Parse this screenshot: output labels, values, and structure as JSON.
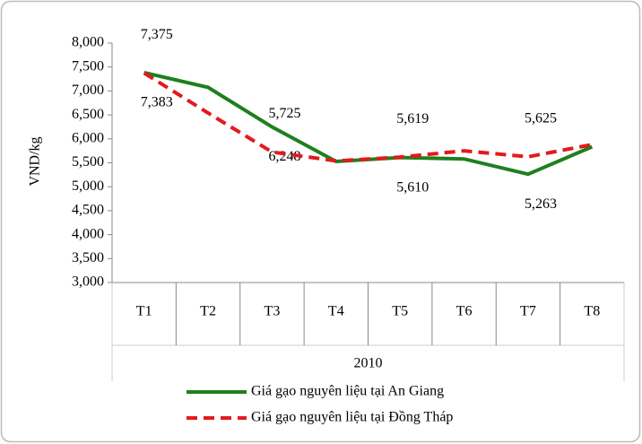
{
  "chart_data": {
    "type": "line",
    "y_label": "VND/kg",
    "x_group_label": "2010",
    "categories": [
      "T1",
      "T2",
      "T3",
      "T4",
      "T5",
      "T6",
      "T7",
      "T8"
    ],
    "series": [
      {
        "name": "Giá gạo nguyên liệu tại An Giang",
        "color": "#1f7f1f",
        "style": "solid",
        "values": [
          7383,
          7075,
          6248,
          5528,
          5610,
          5580,
          5263,
          5835
        ],
        "value_labels": [
          "7,383",
          null,
          "6,248",
          null,
          "5,610",
          null,
          "5,263",
          null
        ]
      },
      {
        "name": "Giá gạo nguyên liệu tại Đồng Tháp",
        "color": "#e31a1c",
        "style": "dashed",
        "values": [
          7375,
          6540,
          5725,
          5540,
          5619,
          5750,
          5625,
          5880
        ],
        "value_labels": [
          "7,375",
          null,
          "5,725",
          null,
          "5,619",
          null,
          "5,625",
          null
        ]
      }
    ],
    "ylim": [
      3000,
      8000
    ],
    "yticks": [
      {
        "value": 3000,
        "label": "3,000"
      },
      {
        "value": 3500,
        "label": "3,500"
      },
      {
        "value": 4000,
        "label": "4,000"
      },
      {
        "value": 4500,
        "label": "4,500"
      },
      {
        "value": 5000,
        "label": "5,000"
      },
      {
        "value": 5500,
        "label": "5,500"
      },
      {
        "value": 6000,
        "label": "6,000"
      },
      {
        "value": 6500,
        "label": "6,500"
      },
      {
        "value": 7000,
        "label": "7,000"
      },
      {
        "value": 7500,
        "label": "7,500"
      },
      {
        "value": 8000,
        "label": "8,000"
      }
    ]
  }
}
